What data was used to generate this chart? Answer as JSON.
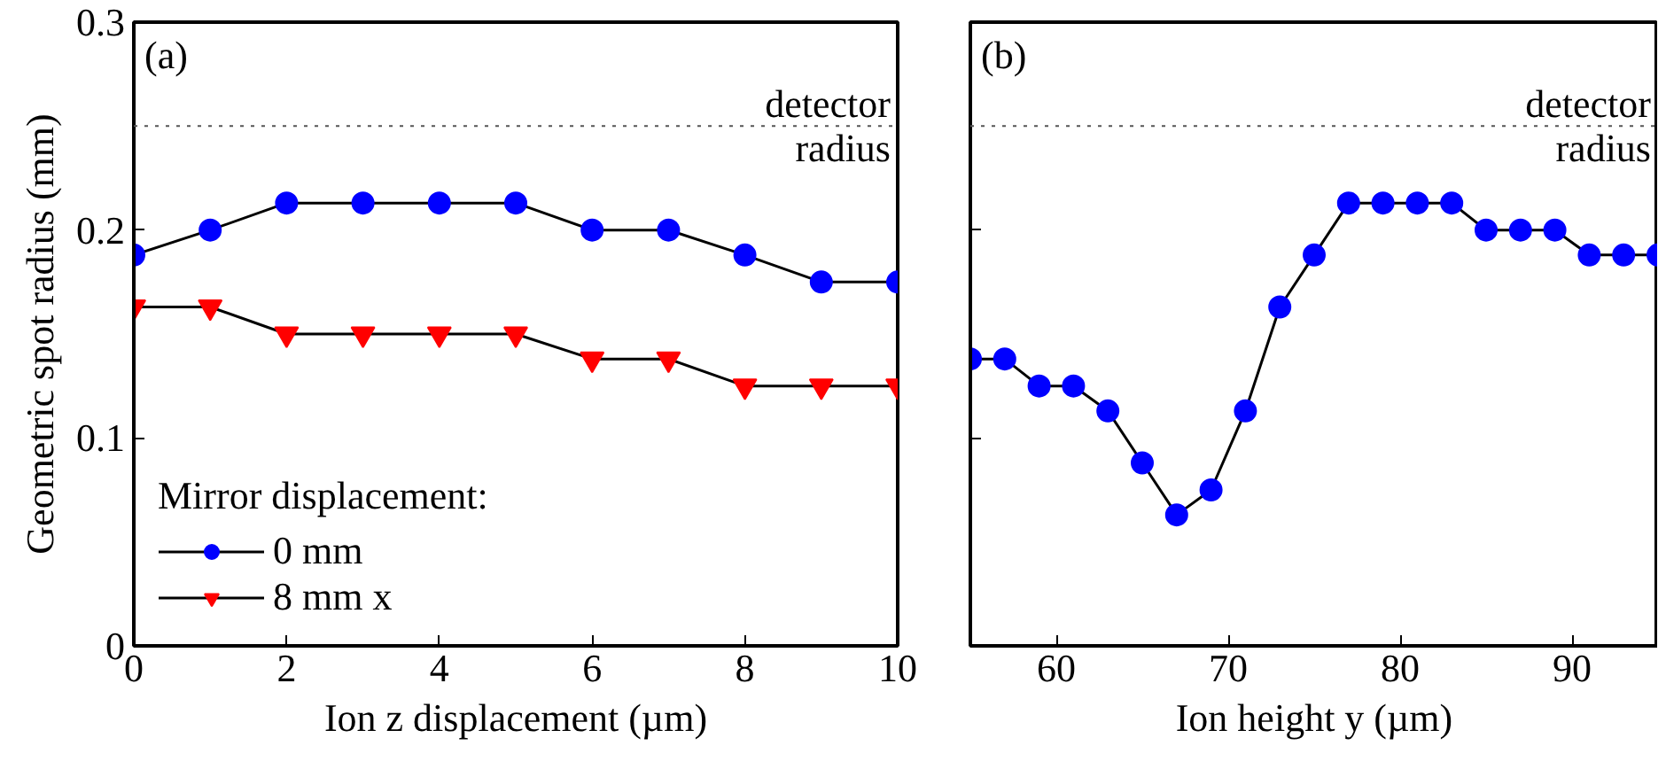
{
  "chart_data": [
    {
      "type": "line",
      "title": "(a)",
      "xlabel": "Ion z displacement (µm)",
      "ylabel": "Geometric spot radius (mm)",
      "legend_title": "Mirror displacement:",
      "legend": "bottom left",
      "line_style": "solid",
      "grid": false,
      "x": [
        0,
        1,
        2,
        3,
        4,
        5,
        6,
        7,
        8,
        9,
        10
      ],
      "series": [
        {
          "name": "0 mm",
          "color": "#0000ff",
          "marker": "circle",
          "values": [
            0.188,
            0.2,
            0.213,
            0.213,
            0.213,
            0.213,
            0.2,
            0.2,
            0.188,
            0.175,
            0.175
          ]
        },
        {
          "name": "8 mm x",
          "color": "#ff0000",
          "marker": "triangle",
          "values": [
            0.163,
            0.163,
            0.15,
            0.15,
            0.15,
            0.15,
            0.138,
            0.138,
            0.125,
            0.125,
            0.125
          ]
        }
      ],
      "xlim": [
        0,
        10
      ],
      "xticks": [
        0,
        2,
        4,
        6,
        8,
        10
      ],
      "ylim": [
        0,
        0.3
      ],
      "yticks": [
        0,
        0.1,
        0.2,
        0.3
      ],
      "ref_lines": [
        {
          "axis": "y",
          "value": 0.25,
          "label": "detector\nradius",
          "color": "#555555",
          "line_style": "dotted"
        }
      ]
    },
    {
      "type": "line",
      "title": "(b)",
      "xlabel": "Ion height y (µm)",
      "line_style": "solid",
      "grid": false,
      "tick_labels": "x",
      "x": [
        55,
        57,
        59,
        61,
        63,
        65,
        67,
        69,
        71,
        73,
        75,
        77,
        79,
        81,
        83,
        85,
        87,
        89,
        91,
        93,
        95
      ],
      "series": [
        {
          "color": "#0000ff",
          "marker": "circle",
          "values": [
            0.138,
            0.138,
            0.125,
            0.125,
            0.113,
            0.088,
            0.063,
            0.075,
            0.113,
            0.163,
            0.188,
            0.213,
            0.213,
            0.213,
            0.213,
            0.2,
            0.2,
            0.2,
            0.188,
            0.188,
            0.188
          ]
        }
      ],
      "xlim": [
        55,
        95
      ],
      "xticks": [
        60,
        70,
        80,
        90
      ],
      "ylim": [
        0,
        0.3
      ],
      "yticks": [
        0,
        0.1,
        0.2,
        0.3
      ],
      "ref_lines": [
        {
          "axis": "y",
          "value": 0.25,
          "label": "detector\nradius",
          "color": "#555555",
          "line_style": "dotted"
        }
      ]
    }
  ]
}
